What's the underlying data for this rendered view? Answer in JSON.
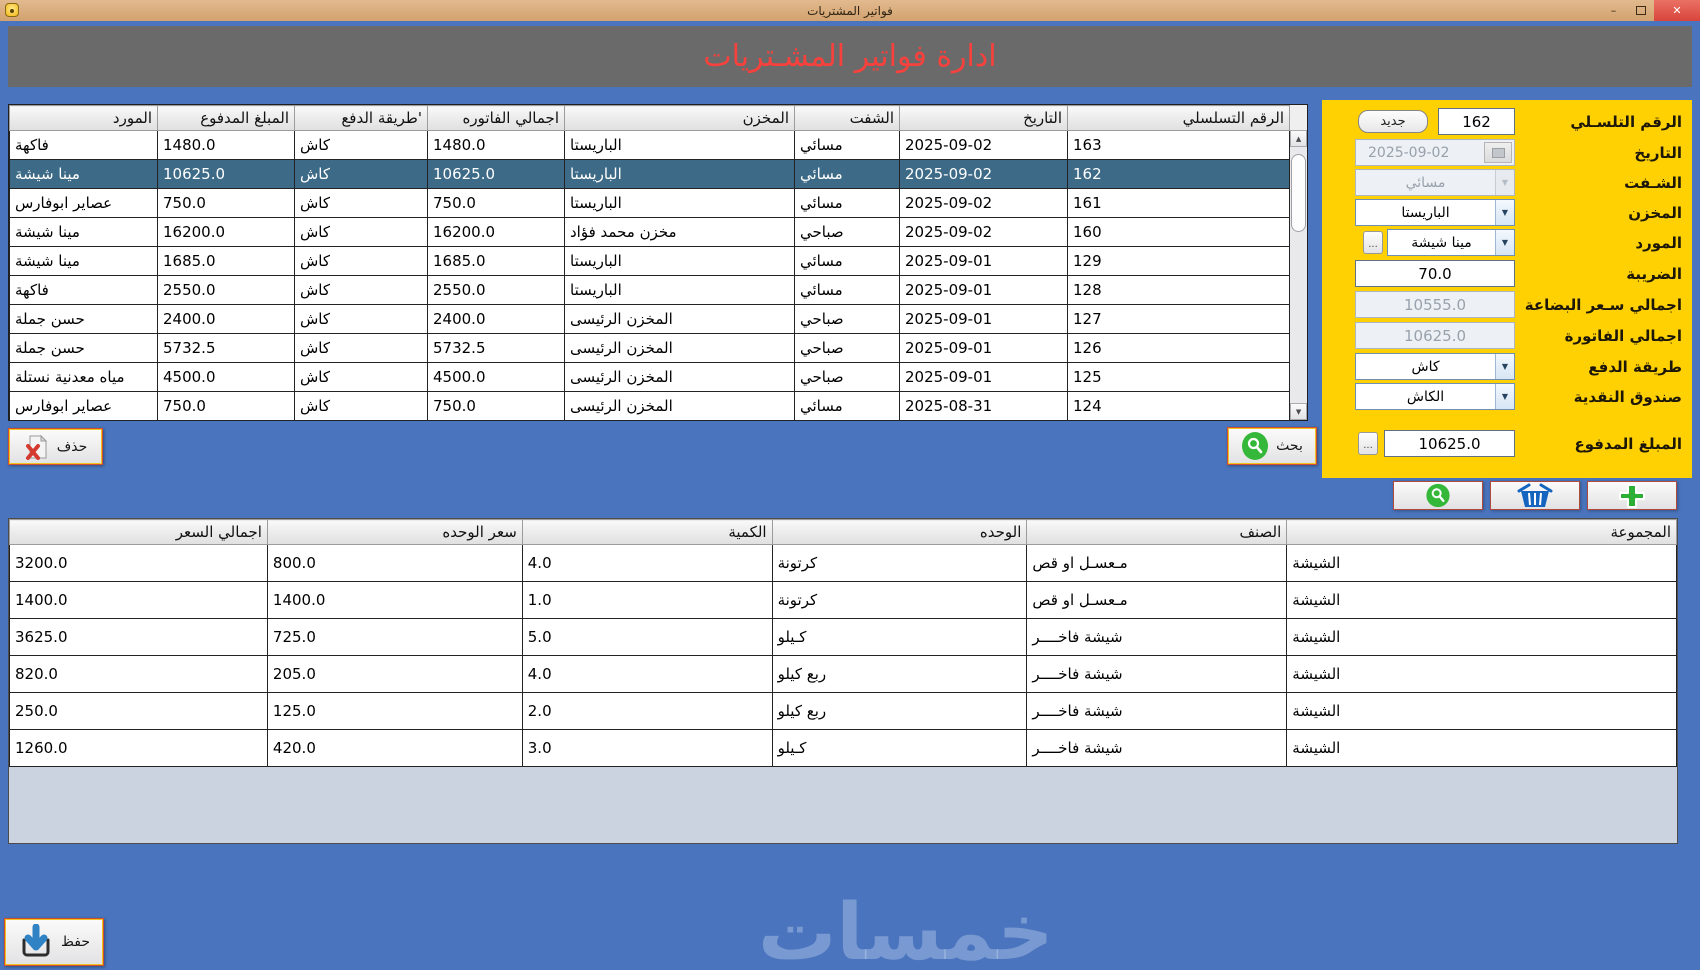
{
  "window": {
    "title": "فواتير المشتريات",
    "minimize_glyph": "–",
    "close_glyph": "✕"
  },
  "banner": {
    "title": "ادارة فواتير المشـتريات"
  },
  "colors": {
    "window_blue": "#4a74bd",
    "titlebar_tan": "#d2a26f",
    "banner_gray": "#6a6a6a",
    "banner_red": "#f6413c",
    "panel_yellow": "#ffd103",
    "selected_row": "#3d6a87",
    "grid_empty_area": "#ccd3e0"
  },
  "invoices_table": {
    "columns": [
      "الرقم التسلسلي",
      "التاريخ",
      "الشفت",
      "المخزن",
      "اجمالي الفاتوره",
      "'طريقة الدفع",
      "المبلغ المدفوع",
      "المورد"
    ],
    "selected_index": 1,
    "rows": [
      [
        "163",
        "2025-09-02",
        "مسائي",
        "الباريستا",
        "1480.0",
        "كاش",
        "1480.0",
        "فاكهة"
      ],
      [
        "162",
        "2025-09-02",
        "مسائي",
        "الباريستا",
        "10625.0",
        "كاش",
        "10625.0",
        "مينا شيشة"
      ],
      [
        "161",
        "2025-09-02",
        "مسائي",
        "الباريستا",
        "750.0",
        "كاش",
        "750.0",
        "عصاير ابوفارس"
      ],
      [
        "160",
        "2025-09-02",
        "صباحي",
        "مخزن محمد فؤاد",
        "16200.0",
        "كاش",
        "16200.0",
        "مينا شيشة"
      ],
      [
        "129",
        "2025-09-01",
        "مسائي",
        "الباريستا",
        "1685.0",
        "كاش",
        "1685.0",
        "مينا شيشة"
      ],
      [
        "128",
        "2025-09-01",
        "مسائي",
        "الباريستا",
        "2550.0",
        "كاش",
        "2550.0",
        "فاكهة"
      ],
      [
        "127",
        "2025-09-01",
        "صباحي",
        "المخزن الرئيسى",
        "2400.0",
        "كاش",
        "2400.0",
        "حسن جملة"
      ],
      [
        "126",
        "2025-09-01",
        "صباحي",
        "المخزن الرئيسى",
        "5732.5",
        "كاش",
        "5732.5",
        "حسن جملة"
      ],
      [
        "125",
        "2025-09-01",
        "صباحي",
        "المخزن الرئيسى",
        "4500.0",
        "كاش",
        "4500.0",
        "مياه معدنية نستلة"
      ],
      [
        "124",
        "2025-08-31",
        "مسائي",
        "المخزن الرئيسى",
        "750.0",
        "كاش",
        "750.0",
        "عصاير ابوفارس"
      ]
    ]
  },
  "form": {
    "serial": {
      "label": "الرقم التلسـلي",
      "value": "162",
      "new_button": "جديد"
    },
    "date": {
      "label": "التاريخ",
      "value": "2025-09-02"
    },
    "shift": {
      "label": "الشـفت",
      "value": "مسائي"
    },
    "warehouse": {
      "label": "المخزن",
      "value": "الباريستا"
    },
    "supplier": {
      "label": "المورد",
      "value": "مينا شيشة",
      "more_button": "..."
    },
    "tax": {
      "label": "الضريبة",
      "value": "70.0"
    },
    "goods_total": {
      "label": "اجمالي سـعر البضاعة",
      "value": "10555.0"
    },
    "invoice_total": {
      "label": "اجمالي الفاتورة",
      "value": "10625.0"
    },
    "payment_method": {
      "label": "طريقة الدفع",
      "value": "كاش"
    },
    "cash_box": {
      "label": "صندوق النقدية",
      "value": "الكاش"
    },
    "amount_paid": {
      "label": "المبلغ المدفوع",
      "value": "10625.0",
      "more_button": "..."
    }
  },
  "buttons": {
    "delete_label": "حذف",
    "search_label": "بحث",
    "save_label": "حفظ"
  },
  "items_table": {
    "columns": [
      "المجموعة",
      "الصنف",
      "الوحده",
      "الكمية",
      "سعر الوحده",
      "اجمالي السعر"
    ],
    "rows": [
      [
        "الشيشة",
        "مـعسـل او قص",
        "كرتونة",
        "4.0",
        "800.0",
        "3200.0"
      ],
      [
        "الشيشة",
        "مـعسـل او قص",
        "كرتونة",
        "1.0",
        "1400.0",
        "1400.0"
      ],
      [
        "الشيشة",
        "شيشة فاخــــر",
        "كـيلو",
        "5.0",
        "725.0",
        "3625.0"
      ],
      [
        "الشيشة",
        "شيشة فاخــــر",
        "ربع كيلو",
        "4.0",
        "205.0",
        "820.0"
      ],
      [
        "الشيشة",
        "شيشة فاخــــر",
        "ربع كيلو",
        "2.0",
        "125.0",
        "250.0"
      ],
      [
        "الشيشة",
        "شيشة فاخــــر",
        "كـيلو",
        "3.0",
        "420.0",
        "1260.0"
      ]
    ]
  },
  "watermark": "خمسات"
}
